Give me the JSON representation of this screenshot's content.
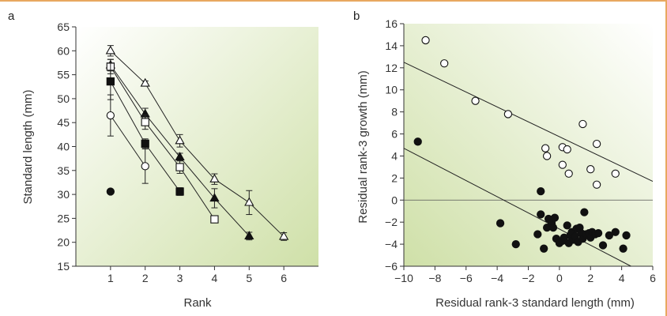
{
  "figure": {
    "frame_color": "#e8a860",
    "bg_gradient": [
      "#ffffff",
      "#cfe0a8"
    ]
  },
  "chart_data": [
    {
      "panel": "a",
      "type": "line",
      "xlabel": "Rank",
      "ylabel": "Standard length (mm)",
      "xlim": [
        0,
        7
      ],
      "ylim": [
        15,
        65
      ],
      "xticks": [
        1,
        2,
        3,
        4,
        5,
        6
      ],
      "yticks": [
        15,
        20,
        25,
        30,
        35,
        40,
        45,
        50,
        55,
        60,
        65
      ],
      "grid": false,
      "series": [
        {
          "marker": "triangle-open",
          "x": [
            1,
            2,
            3,
            4,
            5,
            6
          ],
          "y": [
            60.0,
            53.2,
            41.2,
            33.2,
            28.3,
            21.2
          ],
          "err": [
            1.1,
            0.5,
            1.3,
            1.1,
            2.5,
            0.8
          ]
        },
        {
          "marker": "triangle-filled",
          "x": [
            1,
            2,
            3,
            4,
            5
          ],
          "y": [
            57.0,
            46.8,
            37.8,
            29.2,
            21.3
          ],
          "err": [
            1.2,
            1.2,
            0.8,
            2.0,
            0.8
          ]
        },
        {
          "marker": "square-open",
          "x": [
            1,
            2,
            3,
            4
          ],
          "y": [
            56.7,
            45.1,
            35.7,
            24.8
          ],
          "err": [
            1.5,
            1.5,
            1.3,
            0.6
          ]
        },
        {
          "marker": "square-filled",
          "x": [
            1,
            2,
            3
          ],
          "y": [
            53.6,
            40.6,
            30.6
          ],
          "err": [
            3.8,
            1.0,
            0.8
          ]
        },
        {
          "marker": "circle-open",
          "x": [
            1,
            2
          ],
          "y": [
            46.5,
            35.9
          ],
          "err": [
            4.3,
            3.6
          ]
        },
        {
          "marker": "circle-filled",
          "x": [
            1
          ],
          "y": [
            30.6
          ],
          "err": [
            0
          ]
        }
      ]
    },
    {
      "panel": "b",
      "type": "scatter",
      "xlabel": "Residual rank-3 standard length (mm)",
      "ylabel": "Residual rank-3 growth (mm)",
      "xlim": [
        -10,
        6
      ],
      "ylim": [
        -6,
        16
      ],
      "xticks": [
        -10,
        -8,
        -6,
        -4,
        -2,
        0,
        2,
        4,
        6
      ],
      "yticks": [
        -6,
        -4,
        -2,
        0,
        2,
        4,
        6,
        8,
        10,
        12,
        14,
        16
      ],
      "grid": false,
      "reference_line_y": 0,
      "series": [
        {
          "marker": "circle-open",
          "points": [
            [
              -8.6,
              14.5
            ],
            [
              -7.4,
              12.4
            ],
            [
              -5.4,
              9.0
            ],
            [
              -3.3,
              7.8
            ],
            [
              -0.9,
              4.7
            ],
            [
              -0.8,
              4.0
            ],
            [
              0.2,
              4.8
            ],
            [
              0.5,
              4.6
            ],
            [
              0.2,
              3.2
            ],
            [
              0.6,
              2.4
            ],
            [
              1.5,
              6.9
            ],
            [
              2.0,
              2.8
            ],
            [
              2.4,
              5.1
            ],
            [
              2.4,
              1.4
            ],
            [
              3.6,
              2.4
            ]
          ],
          "fit_line": {
            "x": [
              -10,
              6
            ],
            "y": [
              12.5,
              1.7
            ]
          }
        },
        {
          "marker": "circle-filled",
          "points": [
            [
              -9.1,
              5.3
            ],
            [
              -3.8,
              -2.1
            ],
            [
              -2.8,
              -4.0
            ],
            [
              -1.4,
              -3.1
            ],
            [
              -1.2,
              0.8
            ],
            [
              -1.2,
              -1.3
            ],
            [
              -1.0,
              -4.4
            ],
            [
              -0.8,
              -2.5
            ],
            [
              -0.7,
              -1.7
            ],
            [
              -0.5,
              -2.1
            ],
            [
              -0.3,
              -1.6
            ],
            [
              -0.4,
              -2.5
            ],
            [
              -0.2,
              -3.5
            ],
            [
              0.0,
              -3.9
            ],
            [
              0.2,
              -3.7
            ],
            [
              0.3,
              -3.4
            ],
            [
              0.5,
              -2.3
            ],
            [
              0.6,
              -3.9
            ],
            [
              0.7,
              -3.2
            ],
            [
              0.8,
              -2.9
            ],
            [
              0.9,
              -3.6
            ],
            [
              1.0,
              -3.3
            ],
            [
              1.1,
              -2.6
            ],
            [
              1.2,
              -3.8
            ],
            [
              1.3,
              -2.5
            ],
            [
              1.4,
              -3.0
            ],
            [
              1.5,
              -3.5
            ],
            [
              1.6,
              -1.1
            ],
            [
              1.7,
              -3.1
            ],
            [
              1.9,
              -3.0
            ],
            [
              2.0,
              -3.4
            ],
            [
              2.1,
              -2.9
            ],
            [
              2.3,
              -3.1
            ],
            [
              2.5,
              -3.0
            ],
            [
              2.8,
              -4.1
            ],
            [
              3.2,
              -3.2
            ],
            [
              3.6,
              -2.9
            ],
            [
              4.1,
              -4.4
            ],
            [
              4.3,
              -3.2
            ]
          ],
          "fit_line": {
            "x": [
              -10,
              4.6
            ],
            "y": [
              4.7,
              -6.0
            ]
          }
        }
      ]
    }
  ]
}
